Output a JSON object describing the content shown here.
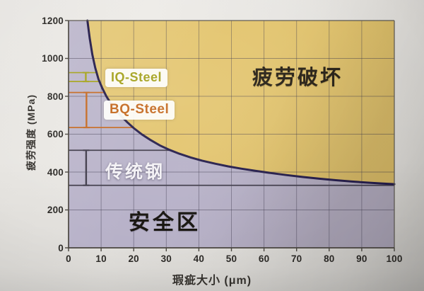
{
  "chart_data": {
    "type": "area",
    "x_axis": {
      "label": "瑕疵大小 (μm)",
      "min": 0,
      "max": 100,
      "tick_step": 10,
      "ticks": [
        0,
        10,
        20,
        30,
        40,
        50,
        60,
        70,
        80,
        90,
        100
      ]
    },
    "y_axis": {
      "label": "疲劳强度 (MPa)",
      "min": 0,
      "max": 1200,
      "tick_step": 200,
      "ticks": [
        0,
        200,
        400,
        600,
        800,
        1000,
        1200
      ]
    },
    "grid": {
      "visible": true,
      "x_step_um": 10,
      "y_step_mpa": 200,
      "line_color": "rgba(55,50,72,0.45)"
    },
    "regions": [
      {
        "id": "failure-zone",
        "label": "疲劳破坏",
        "position": "above-curve",
        "color": "#e3c46c"
      },
      {
        "id": "safe-zone",
        "label": "安全区",
        "position": "below-curve",
        "color": "#b7b1c8"
      }
    ],
    "curve": {
      "color": "#241c4a",
      "stroke_width": 3,
      "points_um_mpa": [
        [
          5.8,
          1200
        ],
        [
          6.5,
          1105
        ],
        [
          7.3,
          1020
        ],
        [
          8.2,
          950
        ],
        [
          9.2,
          890
        ],
        [
          10.3,
          845
        ],
        [
          11.6,
          800
        ],
        [
          13,
          762
        ],
        [
          14.5,
          728
        ],
        [
          16,
          698
        ],
        [
          18,
          663
        ],
        [
          20,
          632
        ],
        [
          22.5,
          599
        ],
        [
          25,
          571
        ],
        [
          28,
          541
        ],
        [
          31,
          517
        ],
        [
          34,
          497
        ],
        [
          37.5,
          477
        ],
        [
          41,
          460
        ],
        [
          45,
          444
        ],
        [
          49,
          430
        ],
        [
          53,
          418
        ],
        [
          57.5,
          406
        ],
        [
          62,
          395
        ],
        [
          67,
          384
        ],
        [
          72,
          374
        ],
        [
          77,
          365
        ],
        [
          82,
          357
        ],
        [
          87,
          350
        ],
        [
          92,
          344
        ],
        [
          96,
          340
        ],
        [
          100,
          336
        ]
      ]
    },
    "steel_markers": [
      {
        "id": "iq-steel",
        "label": "IQ-Steel",
        "color": "#a5a31c",
        "strength_range_mpa": [
          878,
          925
        ],
        "bar_x_um": 5.3,
        "label_background": "#fdfdf9"
      },
      {
        "id": "bq-steel",
        "label": "BQ-Steel",
        "color": "#c56a22",
        "strength_range_mpa": [
          635,
          820
        ],
        "bar_x_um": 5.5,
        "label_background": "#fdfdf9"
      },
      {
        "id": "traditional-steel",
        "label": "传统钢",
        "color": "#413d4b",
        "strength_range_mpa": [
          330,
          515
        ],
        "bar_x_um": 5.4,
        "label_color": "#f4f2f6"
      }
    ],
    "axis_color": "#4a4640",
    "tick_label_color": "#2c2a27"
  }
}
